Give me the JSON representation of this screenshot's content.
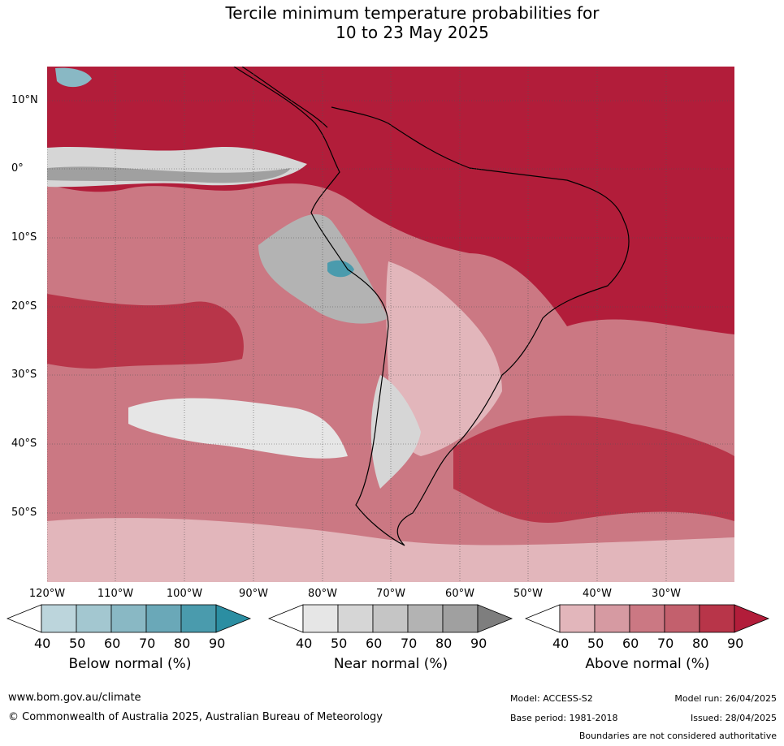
{
  "title_line1": "Tercile minimum temperature probabilities for",
  "title_line2": "10 to 23 May 2025",
  "lat_labels": [
    "10°N",
    "0°",
    "10°S",
    "20°S",
    "30°S",
    "40°S",
    "50°S"
  ],
  "lon_labels": [
    "120°W",
    "110°W",
    "100°W",
    "90°W",
    "80°W",
    "70°W",
    "60°W",
    "50°W",
    "40°W",
    "30°W"
  ],
  "colorbars": [
    {
      "title": "Below normal (%)",
      "ticks": [
        "40",
        "50",
        "60",
        "70",
        "80",
        "90"
      ],
      "colors": [
        "#bcd5dc",
        "#a3c7d0",
        "#89b8c4",
        "#6aa8b8",
        "#4a9bad",
        "#2b8ea2"
      ]
    },
    {
      "title": "Near normal (%)",
      "ticks": [
        "40",
        "50",
        "60",
        "70",
        "80",
        "90"
      ],
      "colors": [
        "#e6e6e6",
        "#d6d6d6",
        "#c5c5c5",
        "#b3b3b3",
        "#a0a0a0",
        "#7e7e7e"
      ]
    },
    {
      "title": "Above normal (%)",
      "ticks": [
        "40",
        "50",
        "60",
        "70",
        "80",
        "90"
      ],
      "colors": [
        "#e2b6bb",
        "#d69aa2",
        "#cb7883",
        "#c3606d",
        "#b83549",
        "#b21d3a"
      ]
    }
  ],
  "footer": {
    "website": "www.bom.gov.au/climate",
    "copyright": "© Commonwealth of Australia 2025, Australian Bureau of Meteorology",
    "model": "Model: ACCESS-S2",
    "base_period": "Base period: 1981-2018",
    "model_run": "Model run: 26/04/2025",
    "issued": "Issued: 28/04/2025",
    "disclaimer": "Boundaries are not considered authoritative"
  }
}
